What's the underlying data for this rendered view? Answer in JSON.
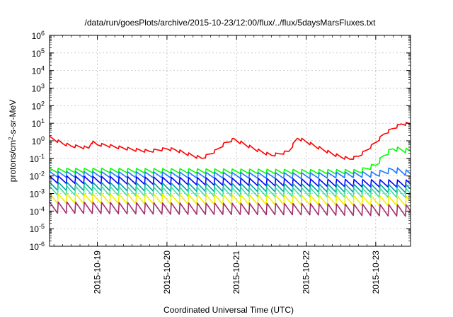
{
  "chart_data": {
    "type": "line",
    "title": "/data/run/goesPlots/archive/2015-10-23/12:00/flux/../flux/5daysMarsFluxes.txt",
    "xlabel": "Coordinated Universal Time (UTC)",
    "ylabel": {
      "prefix": "protons/cm",
      "sup": "2",
      "suffix": "-s-sr-MeV"
    },
    "x_domain_days": [
      "2015-10-18T07:30",
      "2015-10-23T12:00"
    ],
    "xticks": [
      "2015-10-19",
      "2015-10-20",
      "2015-10-21",
      "2015-10-22",
      "2015-10-23"
    ],
    "y_scale": "log",
    "ylim": [
      1e-06,
      1000000.0
    ],
    "yticks": [
      {
        "base": "10",
        "exp": "-6"
      },
      {
        "base": "10",
        "exp": "-5"
      },
      {
        "base": "10",
        "exp": "-4"
      },
      {
        "base": "10",
        "exp": "-3"
      },
      {
        "base": "10",
        "exp": "-2"
      },
      {
        "base": "10",
        "exp": "-1"
      },
      {
        "base": "10",
        "exp": "0"
      },
      {
        "base": "10",
        "exp": "1"
      },
      {
        "base": "10",
        "exp": "2"
      },
      {
        "base": "10",
        "exp": "3"
      },
      {
        "base": "10",
        "exp": "4"
      },
      {
        "base": "10",
        "exp": "5"
      },
      {
        "base": "10",
        "exp": "6"
      }
    ],
    "grid": true,
    "series": [
      {
        "color": "#ff0000",
        "points": [
          [
            "2015-10-18T07:30",
            1.5
          ],
          [
            "2015-10-18T09:00",
            1.2
          ],
          [
            "2015-10-18T12:00",
            0.7
          ],
          [
            "2015-10-18T15:00",
            0.5
          ],
          [
            "2015-10-18T18:00",
            0.45
          ],
          [
            "2015-10-18T21:00",
            0.38
          ],
          [
            "2015-10-18T22:00",
            0.85
          ],
          [
            "2015-10-19T00:00",
            0.6
          ],
          [
            "2015-10-19T03:00",
            0.55
          ],
          [
            "2015-10-19T06:00",
            0.45
          ],
          [
            "2015-10-19T09:00",
            0.38
          ],
          [
            "2015-10-19T12:00",
            0.32
          ],
          [
            "2015-10-19T15:00",
            0.28
          ],
          [
            "2015-10-19T18:00",
            0.25
          ],
          [
            "2015-10-19T21:00",
            0.3
          ],
          [
            "2015-10-20T00:00",
            0.35
          ],
          [
            "2015-10-20T03:00",
            0.3
          ],
          [
            "2015-10-20T06:00",
            0.2
          ],
          [
            "2015-10-20T09:00",
            0.14
          ],
          [
            "2015-10-20T12:00",
            0.1
          ],
          [
            "2015-10-20T15:00",
            0.18
          ],
          [
            "2015-10-20T17:00",
            0.28
          ],
          [
            "2015-10-20T20:00",
            0.7
          ],
          [
            "2015-10-20T23:00",
            1.2
          ],
          [
            "2015-10-21T03:00",
            0.6
          ],
          [
            "2015-10-21T06:00",
            0.35
          ],
          [
            "2015-10-21T09:00",
            0.22
          ],
          [
            "2015-10-21T12:00",
            0.15
          ],
          [
            "2015-10-21T15:00",
            0.18
          ],
          [
            "2015-10-21T18:00",
            0.25
          ],
          [
            "2015-10-21T21:00",
            1.4
          ],
          [
            "2015-10-22T00:00",
            0.9
          ],
          [
            "2015-10-22T03:00",
            0.5
          ],
          [
            "2015-10-22T06:00",
            0.3
          ],
          [
            "2015-10-22T09:00",
            0.18
          ],
          [
            "2015-10-22T12:00",
            0.12
          ],
          [
            "2015-10-22T15:00",
            0.09
          ],
          [
            "2015-10-22T18:00",
            0.13
          ],
          [
            "2015-10-22T21:00",
            0.3
          ],
          [
            "2015-10-23T00:00",
            0.8
          ],
          [
            "2015-10-23T03:00",
            2.5
          ],
          [
            "2015-10-23T06:00",
            5
          ],
          [
            "2015-10-23T09:00",
            9
          ],
          [
            "2015-10-23T12:00",
            9
          ]
        ]
      },
      {
        "color": "#00ff00",
        "points": [
          [
            "2015-10-18T07:30",
            0.02
          ],
          [
            "2015-10-19T00:00",
            0.02
          ],
          [
            "2015-10-20T00:00",
            0.019
          ],
          [
            "2015-10-21T00:00",
            0.018
          ],
          [
            "2015-10-22T00:00",
            0.017
          ],
          [
            "2015-10-22T18:00",
            0.017
          ],
          [
            "2015-10-23T00:00",
            0.04
          ],
          [
            "2015-10-23T03:00",
            0.15
          ],
          [
            "2015-10-23T06:00",
            0.35
          ],
          [
            "2015-10-23T12:00",
            0.25
          ]
        ]
      },
      {
        "color": "#1e78ff",
        "points": [
          [
            "2015-10-18T07:30",
            0.012
          ],
          [
            "2015-10-20T00:00",
            0.011
          ],
          [
            "2015-10-22T00:00",
            0.01
          ],
          [
            "2015-10-23T00:00",
            0.012
          ],
          [
            "2015-10-23T06:00",
            0.022
          ],
          [
            "2015-10-23T12:00",
            0.013
          ]
        ]
      },
      {
        "color": "#0000ff",
        "points": [
          [
            "2015-10-18T07:30",
            0.006
          ],
          [
            "2015-10-20T00:00",
            0.005
          ],
          [
            "2015-10-22T00:00",
            0.004
          ],
          [
            "2015-10-23T12:00",
            0.0035
          ]
        ]
      },
      {
        "color": "#00a0a0",
        "points": [
          [
            "2015-10-18T07:30",
            0.0025
          ],
          [
            "2015-10-20T00:00",
            0.0022
          ],
          [
            "2015-10-22T00:00",
            0.002
          ],
          [
            "2015-10-23T12:00",
            0.0018
          ]
        ]
      },
      {
        "color": "#40e0a0",
        "points": [
          [
            "2015-10-18T07:30",
            0.0014
          ],
          [
            "2015-10-20T00:00",
            0.0012
          ],
          [
            "2015-10-22T00:00",
            0.0011
          ],
          [
            "2015-10-23T12:00",
            0.001
          ]
        ]
      },
      {
        "color": "#f0f000",
        "points": [
          [
            "2015-10-18T07:30",
            0.0005
          ],
          [
            "2015-10-20T00:00",
            0.00045
          ],
          [
            "2015-10-22T00:00",
            0.0004
          ],
          [
            "2015-10-23T12:00",
            0.00035
          ]
        ]
      },
      {
        "color": "#a03070",
        "points": [
          [
            "2015-10-18T07:30",
            0.00015
          ],
          [
            "2015-10-20T00:00",
            0.00013
          ],
          [
            "2015-10-22T00:00",
            0.00012
          ],
          [
            "2015-10-23T12:00",
            0.0001
          ]
        ]
      }
    ]
  }
}
